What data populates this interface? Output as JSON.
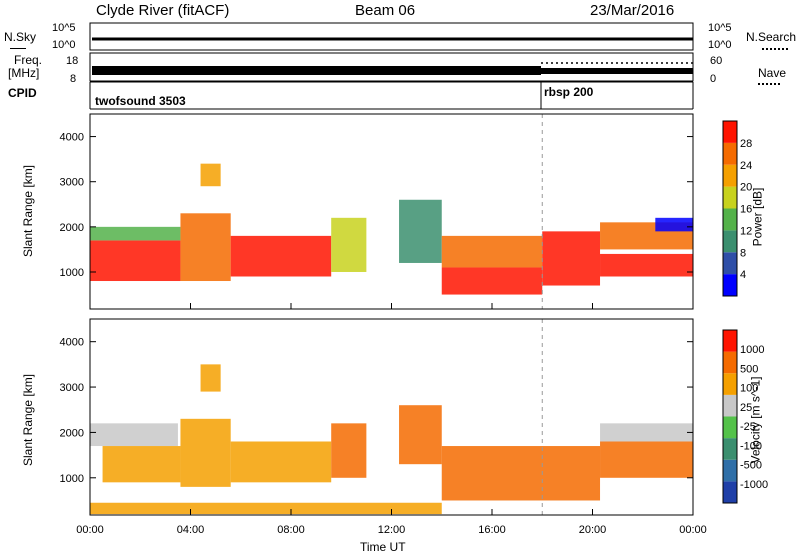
{
  "header": {
    "station": "Clyde River (fitACF)",
    "beam": "Beam 06",
    "date": "23/Mar/2016"
  },
  "top_panels": {
    "nsky_label": "N.Sky",
    "nsky_ticks": [
      "10^5",
      "10^0"
    ],
    "nsearch_label": "N.Search",
    "nsearch_ticks": [
      "10^5",
      "10^0"
    ],
    "freq_label_1": "Freq.",
    "freq_label_2": "[MHz]",
    "freq_ticks": [
      "18",
      "8"
    ],
    "nave_label": "Nave",
    "nave_ticks": [
      "60",
      "0"
    ],
    "cpid_label": "CPID",
    "cpid_segments": [
      {
        "name": "twofsound 3503",
        "start_hour": 0,
        "end_hour": 18
      },
      {
        "name": "rbsp 200",
        "start_hour": 18,
        "end_hour": 24
      }
    ]
  },
  "chart_data": [
    {
      "type": "heatmap",
      "title": "",
      "xlabel": "",
      "ylabel": "Slant Range [km]",
      "x_range_hours": [
        0,
        24
      ],
      "ylim": [
        180,
        4500
      ],
      "yticks": [
        "4000",
        "3000",
        "2000",
        "1000"
      ],
      "xticks": [
        "00:00",
        "04:00",
        "08:00",
        "12:00",
        "16:00",
        "20:00",
        "00:00"
      ],
      "colorbar_label": "Power [dB]",
      "colorbar_ticks": [
        "28",
        "24",
        "20",
        "16",
        "12",
        "8",
        "4"
      ],
      "colorbar_colors": [
        "#0000ff",
        "#2f4fa8",
        "#3b8f6f",
        "#54b24a",
        "#c8d21e",
        "#f5a000",
        "#f56b00",
        "#ff1400"
      ],
      "regions": [
        {
          "start": 0.0,
          "end": 3.6,
          "rmin": 800,
          "rmax": 1700,
          "color": "#ff1400"
        },
        {
          "start": 0.0,
          "end": 3.6,
          "rmin": 1700,
          "rmax": 2000,
          "color": "#54b24a"
        },
        {
          "start": 3.6,
          "end": 5.6,
          "rmin": 800,
          "rmax": 2300,
          "color": "#f56b00"
        },
        {
          "start": 4.4,
          "end": 5.2,
          "rmin": 2900,
          "rmax": 3400,
          "color": "#f5a000"
        },
        {
          "start": 5.6,
          "end": 9.6,
          "rmin": 900,
          "rmax": 1800,
          "color": "#ff1400"
        },
        {
          "start": 9.6,
          "end": 11.0,
          "rmin": 1000,
          "rmax": 2200,
          "color": "#c8d21e"
        },
        {
          "start": 12.3,
          "end": 14.0,
          "rmin": 1200,
          "rmax": 2600,
          "color": "#3b8f6f"
        },
        {
          "start": 14.0,
          "end": 18.0,
          "rmin": 500,
          "rmax": 1100,
          "color": "#ff1400"
        },
        {
          "start": 14.0,
          "end": 18.0,
          "rmin": 1100,
          "rmax": 1800,
          "color": "#f56b00"
        },
        {
          "start": 18.0,
          "end": 20.3,
          "rmin": 700,
          "rmax": 1900,
          "color": "#ff1400"
        },
        {
          "start": 20.3,
          "end": 24.0,
          "rmin": 900,
          "rmax": 1400,
          "color": "#ff1400"
        },
        {
          "start": 20.3,
          "end": 24.0,
          "rmin": 1500,
          "rmax": 2100,
          "color": "#f56b00"
        },
        {
          "start": 22.5,
          "end": 24.0,
          "rmin": 1900,
          "rmax": 2200,
          "color": "#0000ff"
        }
      ]
    },
    {
      "type": "heatmap",
      "title": "",
      "xlabel": "Time UT",
      "ylabel": "Slant Range [km]",
      "x_range_hours": [
        0,
        24
      ],
      "ylim": [
        180,
        4500
      ],
      "yticks": [
        "4000",
        "3000",
        "2000",
        "1000"
      ],
      "xticks": [
        "00:00",
        "04:00",
        "08:00",
        "12:00",
        "16:00",
        "20:00",
        "00:00"
      ],
      "colorbar_label": "Velocity [m s^-1]",
      "colorbar_ticks": [
        "1000",
        "500",
        "100",
        "25",
        "-25",
        "-100",
        "-500",
        "-1000"
      ],
      "colorbar_colors": [
        "#1f3fa8",
        "#2f6fa8",
        "#3b8f6f",
        "#54c24a",
        "#c8c8c8",
        "#f5a000",
        "#f56b00",
        "#ff1400"
      ],
      "regions": [
        {
          "start": 0.0,
          "end": 3.5,
          "rmin": 1700,
          "rmax": 2200,
          "color": "#c8c8c8"
        },
        {
          "start": 0.5,
          "end": 3.6,
          "rmin": 900,
          "rmax": 1700,
          "color": "#f5a000"
        },
        {
          "start": 3.6,
          "end": 5.6,
          "rmin": 800,
          "rmax": 2300,
          "color": "#f5a000"
        },
        {
          "start": 4.4,
          "end": 5.2,
          "rmin": 2900,
          "rmax": 3500,
          "color": "#f5a000"
        },
        {
          "start": 5.6,
          "end": 9.6,
          "rmin": 900,
          "rmax": 1800,
          "color": "#f5a000"
        },
        {
          "start": 9.6,
          "end": 11.0,
          "rmin": 1000,
          "rmax": 2200,
          "color": "#f56b00"
        },
        {
          "start": 12.3,
          "end": 14.0,
          "rmin": 1300,
          "rmax": 2600,
          "color": "#f56b00"
        },
        {
          "start": 14.0,
          "end": 20.3,
          "rmin": 500,
          "rmax": 1700,
          "color": "#f56b00"
        },
        {
          "start": 20.3,
          "end": 24.0,
          "rmin": 1000,
          "rmax": 1800,
          "color": "#f56b00"
        },
        {
          "start": 20.3,
          "end": 24.0,
          "rmin": 1800,
          "rmax": 2200,
          "color": "#c8c8c8"
        },
        {
          "start": 0.0,
          "end": 14.0,
          "rmin": 200,
          "rmax": 450,
          "color": "#f5a000"
        }
      ]
    }
  ]
}
